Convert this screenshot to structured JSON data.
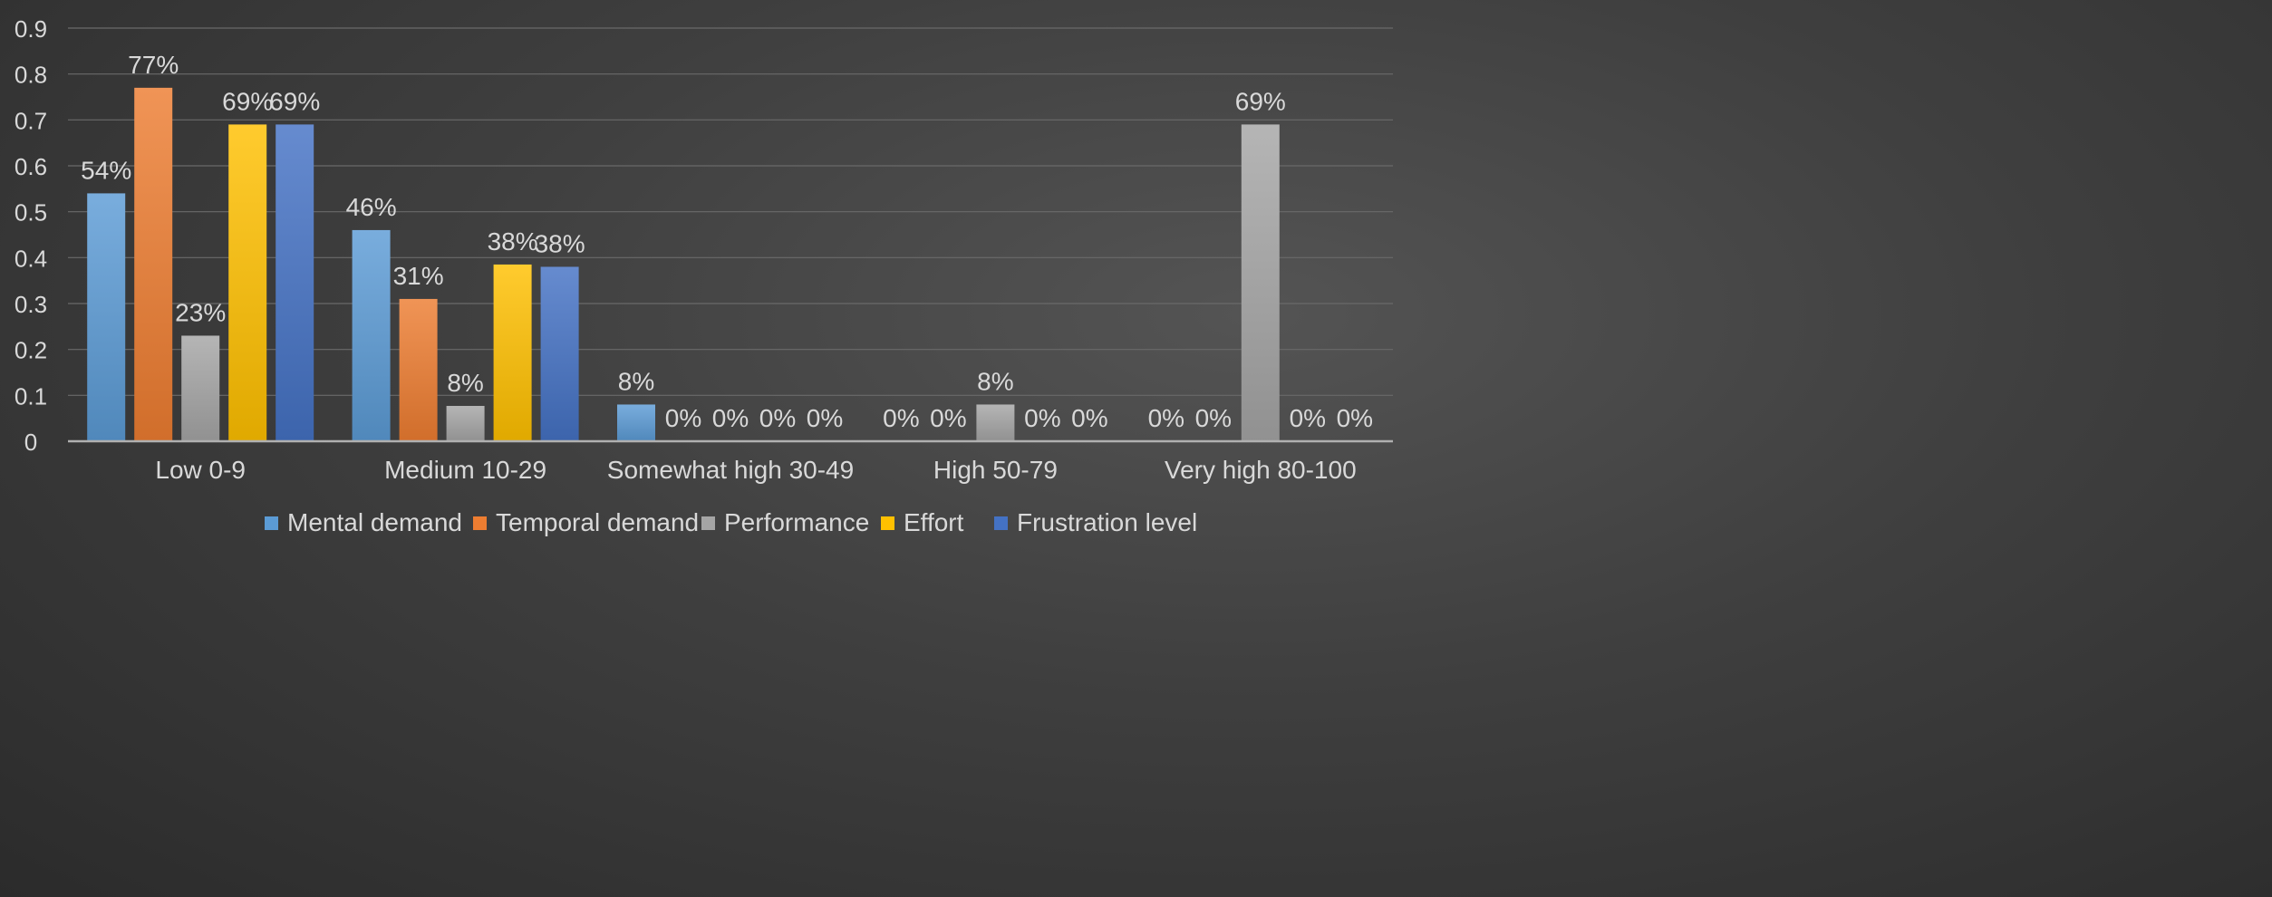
{
  "chart_data": {
    "type": "bar",
    "categories": [
      "Low 0-9",
      "Medium 10-29",
      "Somewhat high 30-49",
      "High 50-79",
      "Very high 80-100"
    ],
    "series": [
      {
        "name": "Mental demand",
        "color": "#5b9bd5",
        "values": [
          0.54,
          0.46,
          0.08,
          0,
          0
        ],
        "labels": [
          "54%",
          "46%",
          "8%",
          "0%",
          "0%"
        ]
      },
      {
        "name": "Temporal demand",
        "color": "#ed7d31",
        "values": [
          0.77,
          0.31,
          0,
          0,
          0
        ],
        "labels": [
          "77%",
          "31%",
          "0%",
          "0%",
          "0%"
        ]
      },
      {
        "name": "Performance",
        "color": "#a5a5a5",
        "values": [
          0.23,
          0.077,
          0,
          0.08,
          0.69
        ],
        "labels": [
          "23%",
          "8%",
          "0%",
          "8%",
          "69%"
        ]
      },
      {
        "name": "Effort",
        "color": "#ffc000",
        "values": [
          0.69,
          0.385,
          0,
          0,
          0
        ],
        "labels": [
          "69%",
          "38%",
          "0%",
          "0%",
          "0%"
        ]
      },
      {
        "name": "Frustration level",
        "color": "#4472c4",
        "values": [
          0.69,
          0.38,
          0,
          0,
          0
        ],
        "labels": [
          "69%",
          "38%",
          "0%",
          "0%",
          "0%"
        ]
      }
    ],
    "yticks": [
      "0",
      "0.1",
      "0.2",
      "0.3",
      "0.4",
      "0.5",
      "0.6",
      "0.7",
      "0.8",
      "0.9"
    ],
    "ylim": [
      0,
      0.9
    ],
    "grid": true,
    "legend": "bottom",
    "title": "",
    "xlabel": "",
    "ylabel": ""
  }
}
